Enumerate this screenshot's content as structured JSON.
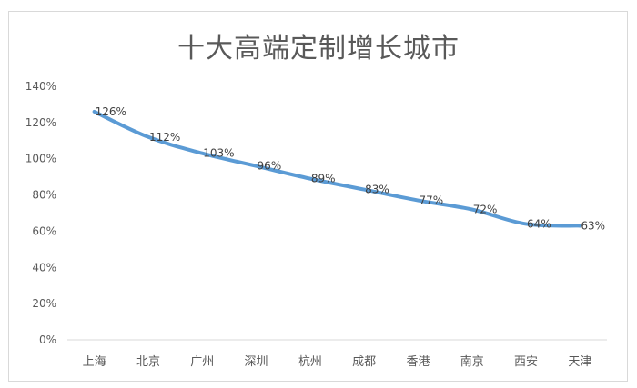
{
  "chart_data": {
    "type": "line",
    "title": "十大高端定制增长城市",
    "categories": [
      "上海",
      "北京",
      "广州",
      "深圳",
      "杭州",
      "成都",
      "香港",
      "南京",
      "西安",
      "天津"
    ],
    "series": [
      {
        "values": [
          126,
          112,
          103,
          96,
          89,
          83,
          77,
          72,
          64,
          63
        ],
        "labels": [
          "126%",
          "112%",
          "103%",
          "96%",
          "89%",
          "83%",
          "77%",
          "72%",
          "64%",
          "63%"
        ]
      }
    ],
    "y_ticks": [
      0,
      20,
      40,
      60,
      80,
      100,
      120,
      140
    ],
    "y_tick_labels": [
      "0%",
      "20%",
      "40%",
      "60%",
      "80%",
      "100%",
      "120%",
      "140%"
    ],
    "ylim": [
      0,
      140
    ],
    "xlabel": "",
    "ylabel": "",
    "grid": false,
    "line_color": "#5b9bd5",
    "text_color": "#595959"
  }
}
